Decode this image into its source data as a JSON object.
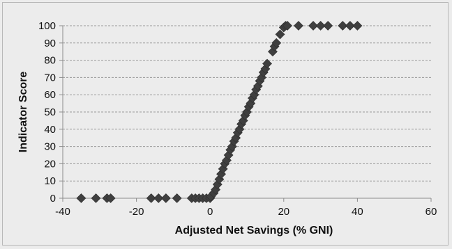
{
  "chart_data": {
    "type": "scatter",
    "title": "",
    "xlabel": "Adjusted Net Savings (% GNI)",
    "ylabel": "Indicator Score",
    "xlim": [
      -40,
      60
    ],
    "ylim": [
      0,
      100
    ],
    "x_ticks": [
      -40,
      -20,
      0,
      20,
      40,
      60
    ],
    "y_ticks": [
      0,
      10,
      20,
      30,
      40,
      50,
      60,
      70,
      80,
      90,
      100
    ],
    "grid": "horizontal dashed",
    "legend": "none",
    "marker": "diamond",
    "colors": {
      "marker": "#3f3f3f",
      "grid": "#9a9a9a",
      "axis": "#8c8c8c",
      "background": "#ececec"
    },
    "points": [
      [
        -35,
        0
      ],
      [
        -31,
        0
      ],
      [
        -28,
        0
      ],
      [
        -27,
        0
      ],
      [
        -16,
        0
      ],
      [
        -14,
        0
      ],
      [
        -12,
        0
      ],
      [
        -9,
        0
      ],
      [
        -5,
        0
      ],
      [
        -4,
        0
      ],
      [
        -3,
        0
      ],
      [
        -2,
        0
      ],
      [
        -1,
        0
      ],
      [
        0,
        0
      ],
      [
        0.2,
        1
      ],
      [
        1,
        3
      ],
      [
        1.5,
        5
      ],
      [
        2,
        8
      ],
      [
        2.5,
        11
      ],
      [
        3,
        14
      ],
      [
        3.5,
        17
      ],
      [
        4,
        20
      ],
      [
        4.5,
        22
      ],
      [
        5,
        25
      ],
      [
        5.5,
        28
      ],
      [
        6,
        30
      ],
      [
        6.5,
        33
      ],
      [
        7,
        35
      ],
      [
        7.5,
        38
      ],
      [
        8,
        40
      ],
      [
        8.5,
        43
      ],
      [
        9,
        45
      ],
      [
        9.5,
        48
      ],
      [
        10,
        50
      ],
      [
        10.5,
        53
      ],
      [
        11,
        55
      ],
      [
        11.5,
        58
      ],
      [
        12,
        60
      ],
      [
        12.5,
        63
      ],
      [
        13,
        65
      ],
      [
        13.5,
        68
      ],
      [
        14,
        70
      ],
      [
        14.5,
        73
      ],
      [
        15,
        75
      ],
      [
        15.5,
        78
      ],
      [
        17,
        85
      ],
      [
        17.5,
        88
      ],
      [
        18,
        90
      ],
      [
        19,
        95
      ],
      [
        20,
        99
      ],
      [
        20.5,
        100
      ],
      [
        21,
        100
      ],
      [
        24,
        100
      ],
      [
        28,
        100
      ],
      [
        30,
        100
      ],
      [
        32,
        100
      ],
      [
        36,
        100
      ],
      [
        38,
        100
      ],
      [
        40,
        100
      ]
    ]
  }
}
